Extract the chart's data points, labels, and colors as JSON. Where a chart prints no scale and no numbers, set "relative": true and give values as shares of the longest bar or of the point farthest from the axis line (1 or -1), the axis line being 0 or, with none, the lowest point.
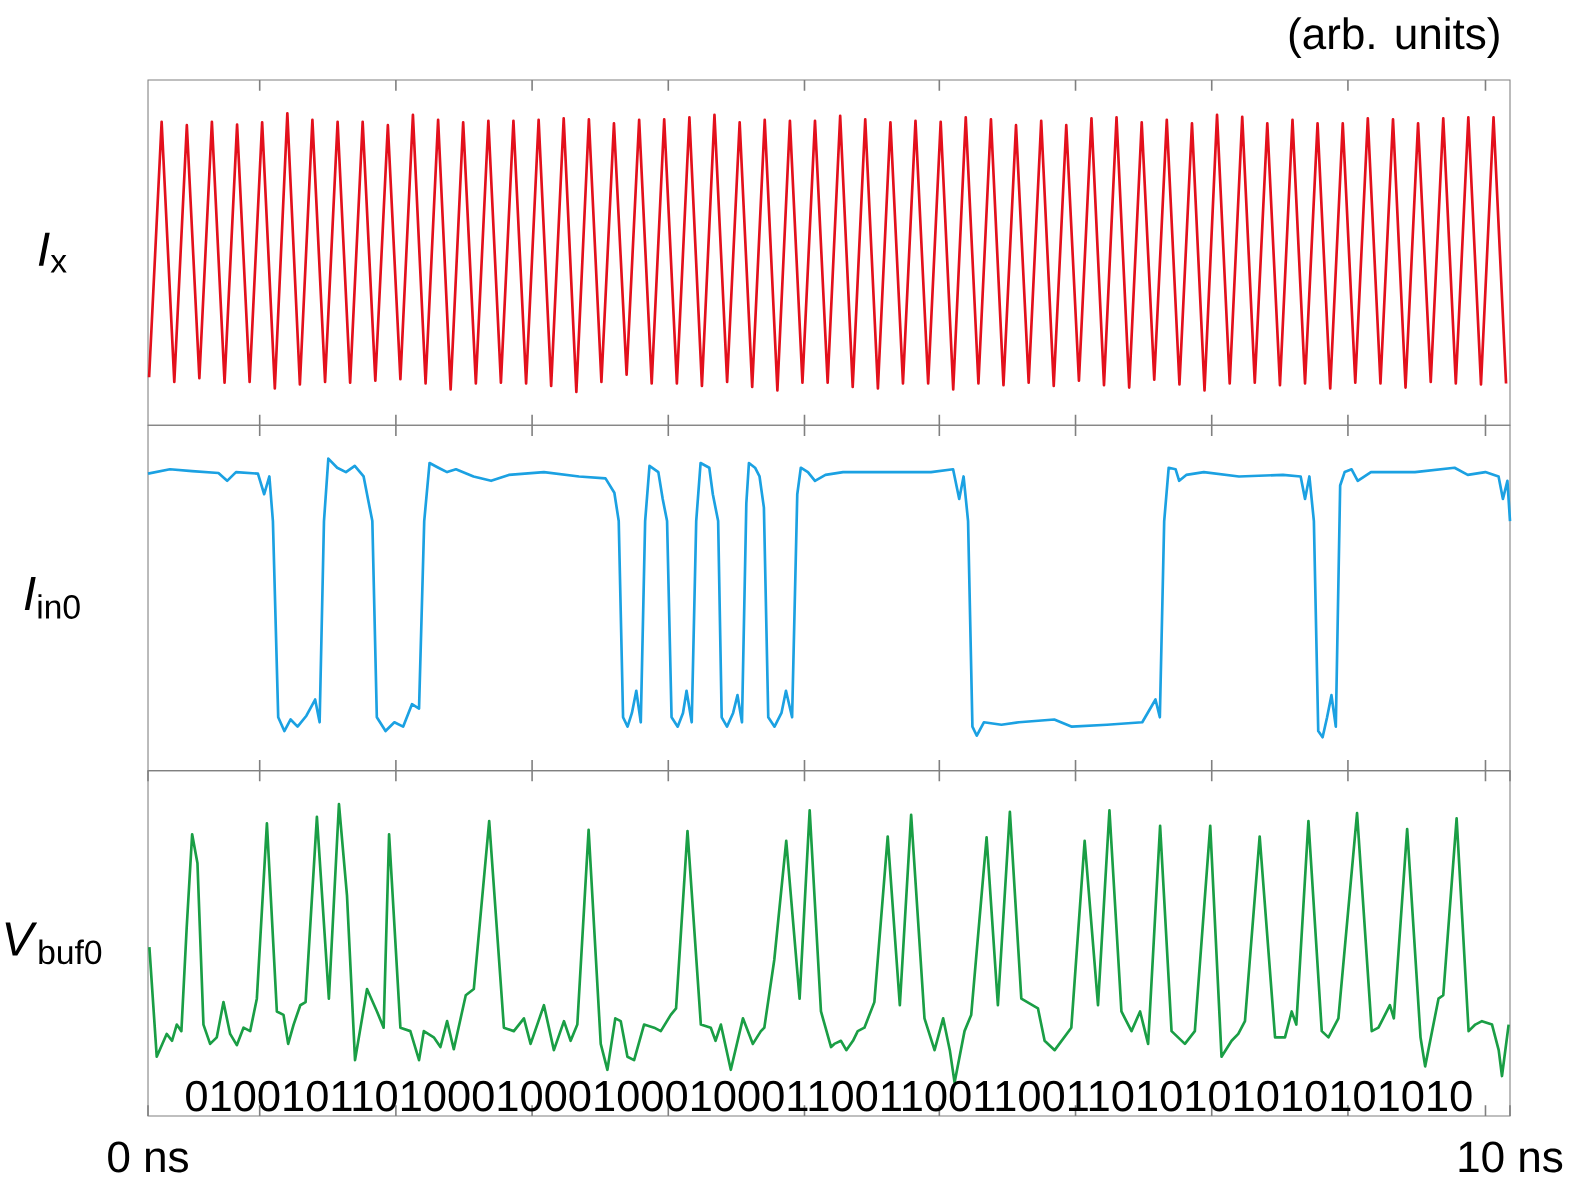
{
  "chart_data": [
    {
      "type": "line",
      "relative": true,
      "ylabel": "*I*$_{x}$",
      "annotations": [
        "(arb. units)"
      ],
      "xlim": [
        0,
        10
      ],
      "tick_labels": false,
      "xticks": [
        {
          "value": 0.82,
          "label": null
        },
        {
          "value": 1.82,
          "label": null
        },
        {
          "value": 2.82,
          "label": null
        },
        {
          "value": 3.82,
          "label": null
        },
        {
          "value": 4.82,
          "label": null
        },
        {
          "value": 5.81,
          "label": null
        },
        {
          "value": 6.81,
          "label": null
        },
        {
          "value": 7.81,
          "label": null
        },
        {
          "value": 8.81,
          "label": null
        },
        {
          "value": 9.82,
          "label": null
        }
      ],
      "series": [
        {
          "color": "#e3101c",
          "x": [
            0.008,
            0.1,
            0.193,
            0.285,
            0.377,
            0.469,
            0.562,
            0.654,
            0.746,
            0.838,
            0.931,
            1.023,
            1.115,
            1.207,
            1.3,
            1.392,
            1.484,
            1.576,
            1.669,
            1.761,
            1.853,
            1.945,
            2.038,
            2.13,
            2.222,
            2.314,
            2.407,
            2.499,
            2.591,
            2.683,
            2.776,
            2.868,
            2.96,
            3.052,
            3.145,
            3.237,
            3.329,
            3.421,
            3.514,
            3.606,
            3.698,
            3.79,
            3.883,
            3.975,
            4.067,
            4.159,
            4.252,
            4.344,
            4.436,
            4.528,
            4.621,
            4.713,
            4.805,
            4.897,
            4.99,
            5.082,
            5.174,
            5.266,
            5.359,
            5.451,
            5.543,
            5.635,
            5.728,
            5.82,
            5.912,
            6.004,
            6.097,
            6.189,
            6.281,
            6.373,
            6.466,
            6.558,
            6.65,
            6.742,
            6.835,
            6.927,
            7.019,
            7.111,
            7.204,
            7.296,
            7.388,
            7.48,
            7.573,
            7.665,
            7.757,
            7.849,
            7.942,
            8.034,
            8.126,
            8.218,
            8.311,
            8.403,
            8.495,
            8.587,
            8.68,
            8.772,
            8.864,
            8.956,
            9.049,
            9.141,
            9.233,
            9.325,
            9.418,
            9.51,
            9.602,
            9.694,
            9.787,
            9.879,
            9.971
          ],
          "values": [
            0.154,
            0.973,
            0.139,
            0.962,
            0.151,
            0.973,
            0.137,
            0.964,
            0.139,
            0.971,
            0.118,
            1,
            0.131,
            0.979,
            0.139,
            0.973,
            0.137,
            0.973,
            0.143,
            0.962,
            0.148,
            0.995,
            0.134,
            0.979,
            0.115,
            0.971,
            0.134,
            0.976,
            0.137,
            0.976,
            0.134,
            0.979,
            0.126,
            0.984,
            0.107,
            0.981,
            0.139,
            0.968,
            0.162,
            0.979,
            0.134,
            0.981,
            0.134,
            0.987,
            0.126,
            0.995,
            0.139,
            0.971,
            0.123,
            0.979,
            0.112,
            0.976,
            0.137,
            0.976,
            0.137,
            0.992,
            0.123,
            0.981,
            0.118,
            0.971,
            0.134,
            0.976,
            0.134,
            0.973,
            0.115,
            0.987,
            0.134,
            0.981,
            0.129,
            0.962,
            0.137,
            0.976,
            0.126,
            0.962,
            0.143,
            0.984,
            0.129,
            0.987,
            0.121,
            0.971,
            0.146,
            0.979,
            0.131,
            0.968,
            0.112,
            0.995,
            0.134,
            0.989,
            0.137,
            0.968,
            0.129,
            0.979,
            0.134,
            0.968,
            0.118,
            0.968,
            0.137,
            0.984,
            0.134,
            0.981,
            0.121,
            0.968,
            0.139,
            0.984,
            0.134,
            0.987,
            0.131,
            0.987,
            0.134
          ]
        }
      ]
    },
    {
      "type": "line",
      "relative": true,
      "ylabel": "*I*$_{in0}$",
      "xlim": [
        0,
        10
      ],
      "tick_labels": false,
      "xticks": [
        {
          "value": 0.82,
          "label": null
        },
        {
          "value": 1.82,
          "label": null
        },
        {
          "value": 2.82,
          "label": null
        },
        {
          "value": 3.82,
          "label": null
        },
        {
          "value": 4.82,
          "label": null
        },
        {
          "value": 5.81,
          "label": null
        },
        {
          "value": 6.81,
          "label": null
        },
        {
          "value": 7.81,
          "label": null
        },
        {
          "value": 8.81,
          "label": null
        },
        {
          "value": 9.82,
          "label": null
        }
      ],
      "series": [
        {
          "color": "#1ba1e2",
          "x": [
            0.0,
            0.161,
            0.323,
            0.517,
            0.581,
            0.646,
            0.807,
            0.853,
            0.891,
            0.917,
            0.956,
            1.001,
            1.047,
            1.098,
            1.163,
            1.227,
            1.26,
            1.292,
            1.324,
            1.389,
            1.453,
            1.518,
            1.583,
            1.615,
            1.647,
            1.68,
            1.744,
            1.809,
            1.873,
            1.938,
            1.99,
            2.028,
            2.067,
            2.132,
            2.196,
            2.261,
            2.39,
            2.519,
            2.649,
            2.907,
            3.165,
            3.359,
            3.424,
            3.456,
            3.488,
            3.521,
            3.553,
            3.585,
            3.618,
            3.65,
            3.682,
            3.747,
            3.779,
            3.811,
            3.844,
            3.889,
            3.928,
            3.954,
            3.992,
            4.025,
            4.057,
            4.121,
            4.147,
            4.186,
            4.212,
            4.251,
            4.296,
            4.328,
            4.361,
            4.393,
            4.412,
            4.457,
            4.49,
            4.522,
            4.554,
            4.6,
            4.651,
            4.684,
            4.729,
            4.767,
            4.793,
            4.845,
            4.897,
            4.974,
            5.103,
            5.426,
            5.749,
            5.911,
            5.956,
            5.988,
            6.021,
            6.053,
            6.085,
            6.137,
            6.266,
            6.395,
            6.654,
            6.783,
            7.041,
            7.3,
            7.397,
            7.429,
            7.461,
            7.494,
            7.545,
            7.571,
            7.623,
            7.752,
            8.01,
            8.333,
            8.463,
            8.495,
            8.527,
            8.56,
            8.592,
            8.624,
            8.657,
            8.689,
            8.721,
            8.753,
            8.786,
            8.837,
            8.882,
            8.979,
            9.302,
            9.593,
            9.69,
            9.819,
            9.916,
            9.948,
            9.981,
            10.0
          ],
          "values": [
            0.952,
            0.966,
            0.96,
            0.954,
            0.929,
            0.957,
            0.952,
            0.886,
            0.943,
            0.8,
            0.171,
            0.127,
            0.164,
            0.141,
            0.176,
            0.228,
            0.155,
            0.8,
            1,
            0.971,
            0.957,
            0.977,
            0.943,
            0.871,
            0.8,
            0.171,
            0.127,
            0.155,
            0.141,
            0.213,
            0.199,
            0.8,
            0.986,
            0.971,
            0.957,
            0.966,
            0.943,
            0.929,
            0.948,
            0.957,
            0.943,
            0.937,
            0.891,
            0.8,
            0.171,
            0.141,
            0.185,
            0.256,
            0.155,
            0.8,
            0.977,
            0.957,
            0.871,
            0.8,
            0.171,
            0.141,
            0.185,
            0.256,
            0.155,
            0.8,
            0.986,
            0.971,
            0.886,
            0.8,
            0.171,
            0.141,
            0.185,
            0.242,
            0.155,
            0.857,
            0.986,
            0.971,
            0.943,
            0.843,
            0.171,
            0.141,
            0.185,
            0.256,
            0.171,
            0.886,
            0.971,
            0.957,
            0.929,
            0.948,
            0.957,
            0.957,
            0.957,
            0.966,
            0.871,
            0.943,
            0.8,
            0.141,
            0.112,
            0.155,
            0.147,
            0.155,
            0.164,
            0.141,
            0.147,
            0.155,
            0.228,
            0.171,
            0.8,
            0.971,
            0.966,
            0.929,
            0.948,
            0.957,
            0.943,
            0.948,
            0.943,
            0.871,
            0.943,
            0.8,
            0.127,
            0.107,
            0.171,
            0.242,
            0.141,
            0.914,
            0.957,
            0.966,
            0.929,
            0.957,
            0.957,
            0.971,
            0.948,
            0.957,
            0.943,
            0.871,
            0.929,
            0.8
          ]
        }
      ]
    },
    {
      "type": "line",
      "relative": true,
      "ylabel": "*V*$_{buf0}$",
      "annotations": [
        "010010110100010001000100011001100110011010101010101010"
      ],
      "xlim": [
        0,
        10
      ],
      "tick_labels": "x",
      "xticks": [
        {
          "value": 0,
          "label": "0 ns"
        },
        {
          "value": 0.82,
          "label": null
        },
        {
          "value": 1.82,
          "label": null
        },
        {
          "value": 2.82,
          "label": null
        },
        {
          "value": 3.82,
          "label": null
        },
        {
          "value": 4.82,
          "label": null
        },
        {
          "value": 5.81,
          "label": null
        },
        {
          "value": 6.81,
          "label": null
        },
        {
          "value": 7.81,
          "label": null
        },
        {
          "value": 8.81,
          "label": null
        },
        {
          "value": 9.82,
          "label": null
        },
        {
          "value": 10,
          "label": "10 ns"
        }
      ],
      "series": [
        {
          "color": "#1a9e45",
          "x": [
            0.01,
            0.064,
            0.137,
            0.176,
            0.211,
            0.245,
            0.284,
            0.324,
            0.363,
            0.407,
            0.456,
            0.505,
            0.554,
            0.603,
            0.652,
            0.701,
            0.75,
            0.799,
            0.873,
            0.946,
            0.995,
            1.029,
            1.069,
            1.118,
            1.157,
            1.24,
            1.328,
            1.402,
            1.461,
            1.52,
            1.608,
            1.681,
            1.73,
            1.77,
            1.853,
            1.926,
            1.99,
            2.025,
            2.098,
            2.147,
            2.196,
            2.245,
            2.333,
            2.392,
            2.505,
            2.613,
            2.686,
            2.76,
            2.809,
            2.907,
            2.98,
            3.054,
            3.103,
            3.152,
            3.235,
            3.324,
            3.373,
            3.431,
            3.471,
            3.52,
            3.569,
            3.642,
            3.716,
            3.765,
            3.838,
            3.877,
            3.961,
            4.059,
            4.132,
            4.167,
            4.206,
            4.279,
            4.368,
            4.441,
            4.5,
            4.525,
            4.598,
            4.686,
            4.784,
            4.858,
            4.941,
            5.015,
            5.039,
            5.088,
            5.127,
            5.176,
            5.211,
            5.26,
            5.333,
            5.431,
            5.52,
            5.603,
            5.701,
            5.775,
            5.838,
            5.887,
            5.922,
            5.995,
            6.044,
            6.157,
            6.24,
            6.328,
            6.412,
            6.534,
            6.583,
            6.657,
            6.779,
            6.877,
            6.975,
            7.059,
            7.147,
            7.221,
            7.284,
            7.343,
            7.431,
            7.515,
            7.613,
            7.686,
            7.799,
            7.882,
            7.956,
            8.005,
            8.054,
            8.162,
            8.275,
            8.348,
            8.397,
            8.431,
            8.52,
            8.618,
            8.667,
            8.74,
            8.877,
            8.985,
            9.034,
            9.118,
            9.147,
            9.245,
            9.343,
            9.377,
            9.475,
            9.51,
            9.608,
            9.696,
            9.745,
            9.794,
            9.868,
            9.917,
            9.941,
            9.99
          ],
          "values": [
            0.541,
            0.19,
            0.263,
            0.241,
            0.293,
            0.272,
            0.604,
            0.903,
            0.81,
            0.293,
            0.231,
            0.252,
            0.365,
            0.263,
            0.227,
            0.283,
            0.272,
            0.376,
            0.938,
            0.335,
            0.324,
            0.231,
            0.293,
            0.355,
            0.365,
            0.959,
            0.376,
            1,
            0.706,
            0.179,
            0.407,
            0.335,
            0.283,
            0.903,
            0.283,
            0.272,
            0.179,
            0.272,
            0.252,
            0.221,
            0.304,
            0.214,
            0.387,
            0.407,
            0.945,
            0.283,
            0.272,
            0.313,
            0.231,
            0.355,
            0.211,
            0.304,
            0.241,
            0.293,
            0.917,
            0.231,
            0.148,
            0.313,
            0.304,
            0.19,
            0.179,
            0.293,
            0.283,
            0.272,
            0.324,
            0.345,
            0.913,
            0.293,
            0.283,
            0.241,
            0.293,
            0.148,
            0.313,
            0.231,
            0.272,
            0.283,
            0.5,
            0.882,
            0.376,
            0.98,
            0.335,
            0.221,
            0.231,
            0.241,
            0.211,
            0.241,
            0.272,
            0.283,
            0.365,
            0.896,
            0.355,
            0.965,
            0.313,
            0.211,
            0.313,
            0.211,
            0.107,
            0.272,
            0.324,
            0.893,
            0.355,
            0.975,
            0.376,
            0.345,
            0.241,
            0.211,
            0.283,
            0.882,
            0.355,
            0.98,
            0.335,
            0.272,
            0.335,
            0.231,
            0.93,
            0.272,
            0.231,
            0.272,
            0.93,
            0.19,
            0.241,
            0.263,
            0.304,
            0.896,
            0.252,
            0.252,
            0.335,
            0.293,
            0.945,
            0.272,
            0.252,
            0.313,
            0.971,
            0.272,
            0.283,
            0.355,
            0.313,
            0.92,
            0.252,
            0.159,
            0.376,
            0.387,
            0.954,
            0.272,
            0.293,
            0.304,
            0.293,
            0.211,
            0.128,
            0.293
          ]
        }
      ]
    }
  ]
}
